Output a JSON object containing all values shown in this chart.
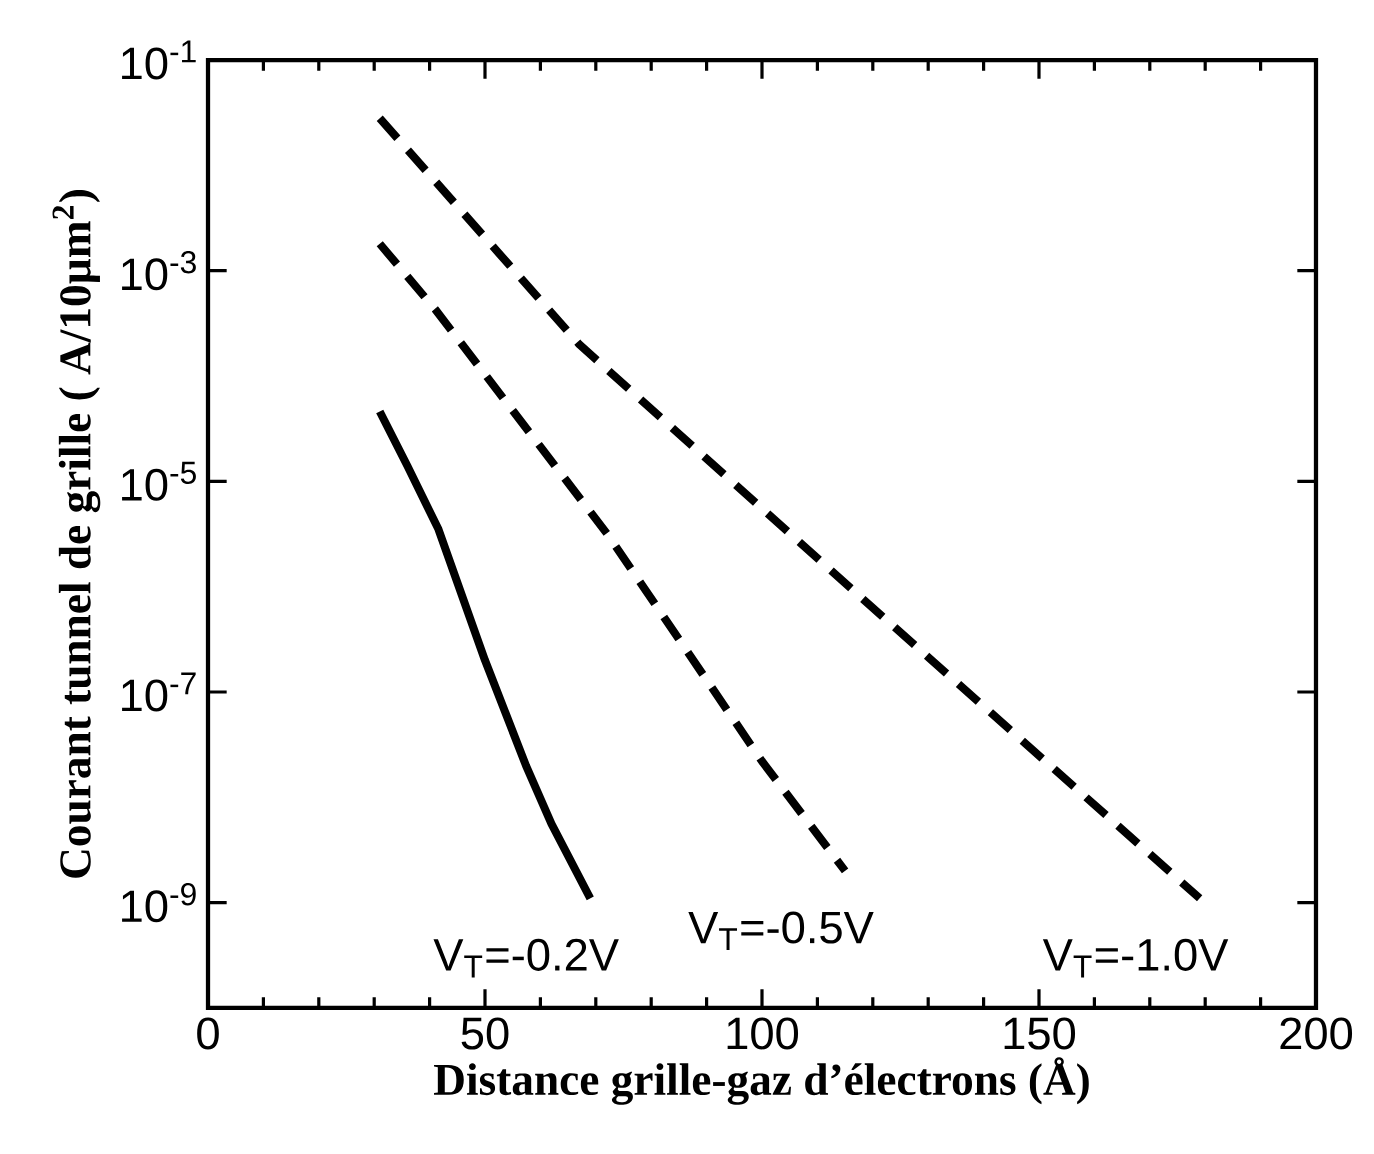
{
  "chart_data": {
    "type": "line",
    "xlabel": "Distance grille-gaz d’électrons (Å)",
    "ylabel": "Courant tunnel de grille ( A/10µm$^{2}$)",
    "log": "y",
    "xlim": [
      0,
      200
    ],
    "xticks": [
      0,
      50,
      100,
      150,
      200
    ],
    "ylim": [
      1e-10,
      0.1
    ],
    "yticks": [
      {
        "value": 0.1,
        "label": "10$^{-1}$"
      },
      {
        "value": 0.001,
        "label": "10$^{-3}$"
      },
      {
        "value": 1e-05,
        "label": "10$^{-5}$"
      },
      {
        "value": 1e-07,
        "label": "10$^{-7}$"
      },
      {
        "value": 1e-09,
        "label": "10$^{-9}$"
      }
    ],
    "grid": false,
    "marker": "none",
    "series": [
      {
        "name": "V$_{T}$=-0.2V",
        "color": "#000000",
        "line_style": "solid",
        "x": [
          31,
          36,
          41.6,
          50,
          57.4,
          62,
          69
        ],
        "values": [
          4.6e-05,
          1.4e-05,
          3.5e-06,
          2e-07,
          2e-08,
          5.6e-09,
          1.1e-09
        ]
      },
      {
        "name": "V$_{T}$=-0.5V",
        "color": "#000000",
        "line_style": "dashed",
        "x": [
          31,
          41,
          72,
          100,
          115
        ],
        "values": [
          0.0018,
          0.00043,
          3.2e-06,
          2.2e-08,
          2e-09
        ]
      },
      {
        "name": "V$_{T}$=-1.0V",
        "color": "#000000",
        "line_style": "dashed",
        "x": [
          31,
          67,
          118,
          179
        ],
        "values": [
          0.028,
          0.0002,
          7.8e-07,
          1.1e-09
        ]
      }
    ]
  }
}
